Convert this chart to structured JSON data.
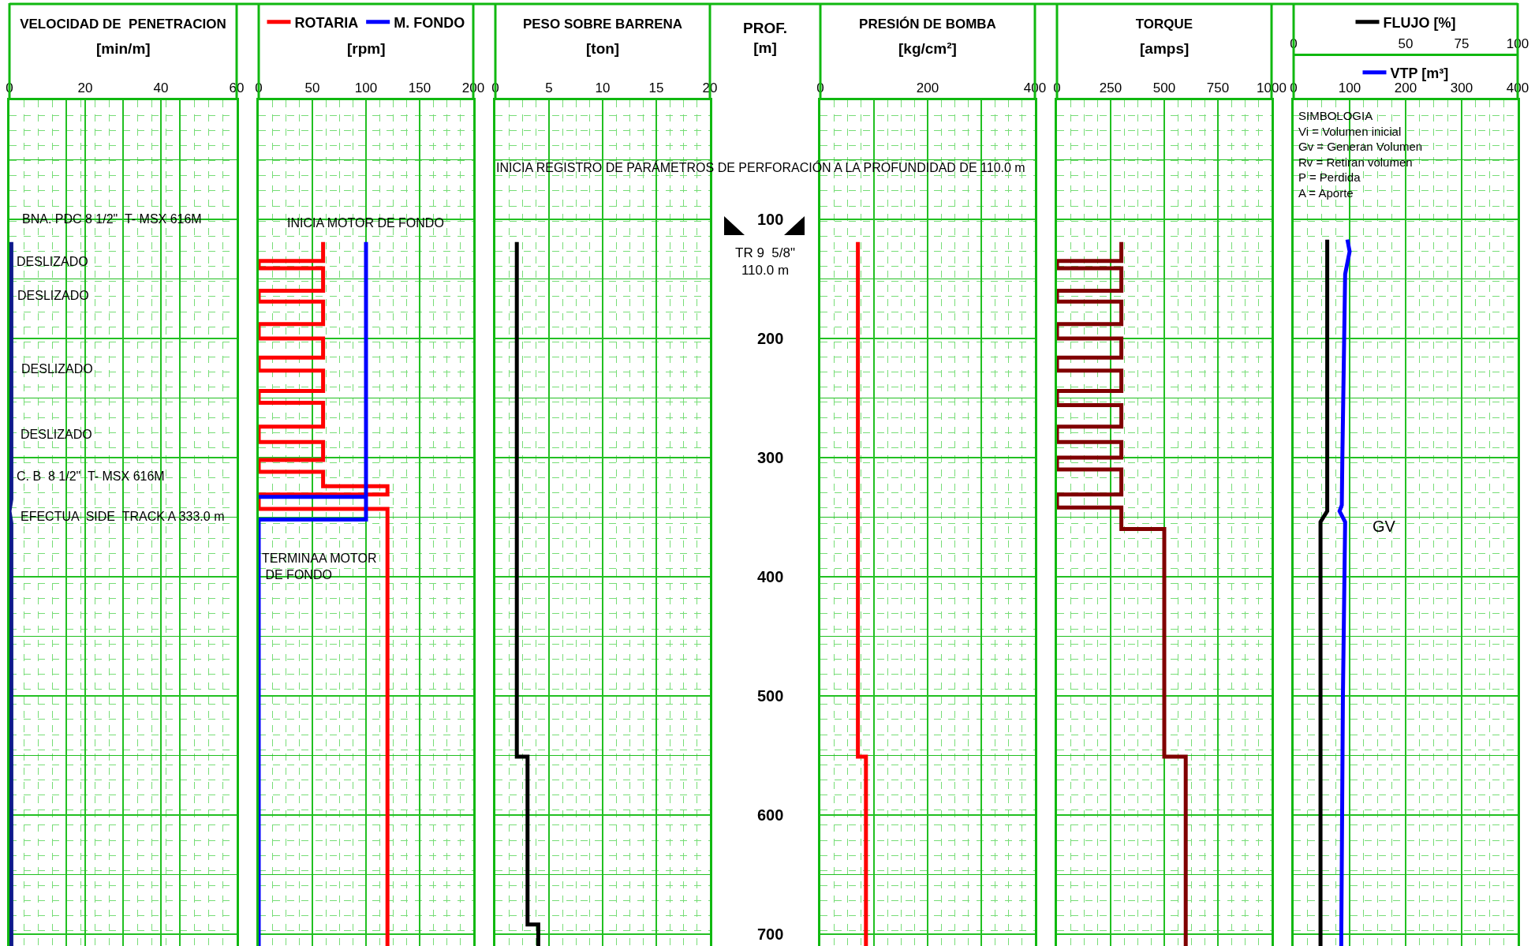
{
  "chart_data": [
    {
      "type": "line",
      "title": "VELOCIDAD DE  PENETRACION",
      "xlabel": "[min/m]",
      "xlim": [
        0,
        60
      ],
      "xticks": [
        0,
        {
          "value": 15,
          "label": null
        },
        20,
        {
          "value": 30,
          "label": null
        },
        40,
        {
          "value": 45,
          "label": null
        },
        60
      ],
      "ylim": [
        710,
        0
      ],
      "yticks": [
        {
          "value": 50,
          "label": null
        },
        100,
        {
          "value": 150,
          "label": null
        },
        200,
        {
          "value": 250,
          "label": null
        },
        300,
        {
          "value": 350,
          "label": null
        },
        400,
        {
          "value": 450,
          "label": null
        },
        500,
        {
          "value": 550,
          "label": null
        },
        600,
        {
          "value": 650,
          "label": null
        },
        700
      ],
      "grid": true,
      "tick_labels": "x",
      "series": [
        {
          "color": "#0d1a8a",
          "x": [
            0.5,
            0.5,
            0,
            0.5,
            0.5
          ],
          "values": [
            119,
            335,
            345,
            355,
            710
          ]
        }
      ],
      "annotations": [
        "BNA. PDC 8 1/2\"  T- MSX 616M",
        "DESLIZADO",
        "DESLIZADO",
        "DESLIZADO",
        "DESLIZADO",
        "C. B  8 1/2\"  T- MSX 616M",
        "EFECTUA  SIDE  TRACK A 333.0 m"
      ]
    },
    {
      "type": "line",
      "xlabel": "[rpm]",
      "xlim": [
        0,
        200
      ],
      "xticks": [
        0,
        50,
        100,
        150,
        200
      ],
      "ylim": [
        710,
        0
      ],
      "yticks": [
        {
          "value": 50,
          "label": null
        },
        100,
        {
          "value": 150,
          "label": null
        },
        200,
        {
          "value": 250,
          "label": null
        },
        300,
        {
          "value": 350,
          "label": null
        },
        400,
        {
          "value": 450,
          "label": null
        },
        500,
        {
          "value": 550,
          "label": null
        },
        600,
        {
          "value": 650,
          "label": null
        },
        700
      ],
      "grid": true,
      "tick_labels": "x",
      "legend": "top",
      "series": [
        {
          "name": "ROTARIA",
          "color": "#ff0000",
          "x": [
            60,
            60,
            0,
            0,
            60,
            60,
            0,
            0,
            60,
            60,
            0,
            0,
            60,
            60,
            0,
            0,
            60,
            60,
            0,
            0,
            60,
            60,
            0,
            0,
            60,
            60,
            0,
            0,
            60,
            60,
            120,
            120,
            0,
            0,
            120,
            120
          ],
          "values": [
            119,
            135,
            135,
            141,
            141,
            160,
            160,
            169,
            169,
            188,
            188,
            200,
            200,
            216,
            216,
            227,
            227,
            244,
            244,
            254,
            254,
            274,
            274,
            287,
            287,
            302,
            302,
            312,
            312,
            324,
            324,
            331,
            331,
            343,
            343,
            710
          ]
        },
        {
          "name": "M. FONDO",
          "color": "#0000ff",
          "x": [
            0,
            100,
            100,
            100,
            0,
            0
          ],
          "values": [
            333,
            333,
            119,
            352,
            352,
            710
          ]
        }
      ],
      "annotations": [
        "INICIA MOTOR DE FONDO",
        "TERMINAA MOTOR\n DE FONDO"
      ]
    },
    {
      "type": "line",
      "title": "PESO SOBRE BARRENA",
      "xlabel": "[ton]",
      "ylabel": "PROF.\n[m]",
      "xlim": [
        0,
        20
      ],
      "xticks": [
        0,
        5,
        10,
        15,
        20
      ],
      "ylim": [
        710,
        0
      ],
      "yticks": [
        {
          "value": 50,
          "label": null
        },
        100,
        {
          "value": 150,
          "label": null
        },
        200,
        {
          "value": 250,
          "label": null
        },
        300,
        {
          "value": 350,
          "label": null
        },
        400,
        {
          "value": 450,
          "label": null
        },
        500,
        {
          "value": 550,
          "label": null
        },
        600,
        {
          "value": 650,
          "label": null
        },
        700
      ],
      "grid": true,
      "series": [
        {
          "color": "#000000",
          "x": [
            2,
            2,
            3,
            3,
            4,
            4
          ],
          "values": [
            119,
            551,
            551,
            692,
            692,
            710
          ]
        }
      ],
      "annotations": [
        "INICIA REGISTRO DE PARÁMETROS DE PERFORACIÓN A LA PROFUNDIDAD DE 110.0 m",
        "TR 9  5/8\"\n110.0 m"
      ]
    },
    {
      "type": "line",
      "title": "PRESIÓN DE BOMBA",
      "xlabel": "[kg/cm²]",
      "xlim": [
        0,
        400
      ],
      "xticks": [
        0,
        {
          "value": 100,
          "label": null
        },
        200,
        {
          "value": 300,
          "label": null
        },
        400
      ],
      "ylim": [
        710,
        0
      ],
      "yticks": [
        {
          "value": 50,
          "label": null
        },
        100,
        {
          "value": 150,
          "label": null
        },
        200,
        {
          "value": 250,
          "label": null
        },
        300,
        {
          "value": 350,
          "label": null
        },
        400,
        {
          "value": 450,
          "label": null
        },
        500,
        {
          "value": 550,
          "label": null
        },
        600,
        {
          "value": 650,
          "label": null
        },
        700
      ],
      "grid": true,
      "tick_labels": "x",
      "series": [
        {
          "color": "#ff0000",
          "x": [
            70,
            70,
            85,
            85
          ],
          "values": [
            119,
            551,
            551,
            710
          ]
        }
      ]
    },
    {
      "type": "line",
      "title": "TORQUE",
      "xlabel": "[amps]",
      "xlim": [
        0,
        1000
      ],
      "xticks": [
        0,
        250,
        500,
        750,
        1000
      ],
      "ylim": [
        710,
        0
      ],
      "yticks": [
        {
          "value": 50,
          "label": null
        },
        100,
        {
          "value": 150,
          "label": null
        },
        200,
        {
          "value": 250,
          "label": null
        },
        300,
        {
          "value": 350,
          "label": null
        },
        400,
        {
          "value": 450,
          "label": null
        },
        500,
        {
          "value": 550,
          "label": null
        },
        600,
        {
          "value": 650,
          "label": null
        },
        700
      ],
      "grid": true,
      "tick_labels": "x",
      "series": [
        {
          "color": "#800000",
          "x": [
            300,
            300,
            0,
            0,
            300,
            300,
            0,
            0,
            300,
            300,
            0,
            0,
            300,
            300,
            0,
            0,
            300,
            300,
            0,
            0,
            300,
            300,
            0,
            0,
            300,
            300,
            0,
            0,
            300,
            300,
            0,
            0,
            300,
            300,
            500,
            500,
            600,
            600
          ],
          "values": [
            119,
            135,
            135,
            141,
            141,
            160,
            160,
            169,
            169,
            188,
            188,
            200,
            200,
            216,
            216,
            227,
            227,
            244,
            244,
            256,
            256,
            274,
            274,
            287,
            287,
            300,
            300,
            310,
            310,
            331,
            331,
            342,
            342,
            360,
            360,
            551,
            551,
            710
          ]
        }
      ]
    },
    {
      "type": "line",
      "xlim": [
        0,
        100
      ],
      "xticks": [
        0,
        50,
        75,
        100
      ],
      "x2lim": [
        0,
        400
      ],
      "x2ticks": [
        0,
        100,
        200,
        300,
        400
      ],
      "ylim": [
        710,
        0
      ],
      "yticks": [
        {
          "value": 50,
          "label": null
        },
        100,
        {
          "value": 150,
          "label": null
        },
        200,
        {
          "value": 250,
          "label": null
        },
        300,
        {
          "value": 350,
          "label": null
        },
        400,
        {
          "value": 450,
          "label": null
        },
        500,
        {
          "value": 550,
          "label": null
        },
        600,
        {
          "value": 650,
          "label": null
        },
        700
      ],
      "grid": true,
      "tick_labels": "x",
      "legend": "top",
      "series": [
        {
          "name": "FLUJO [%]",
          "color": "#000000",
          "x": [
            15,
            15,
            12,
            12
          ],
          "values": [
            117,
            345,
            354,
            710
          ]
        },
        {
          "name": "VTP [m³]",
          "color": "#0000ff",
          "axis": "x2",
          "x": [
            96,
            100,
            92,
            87,
            86,
            82,
            92,
            88,
            85
          ],
          "values": [
            117,
            127,
            146,
            300,
            340,
            345,
            354,
            500,
            710
          ]
        }
      ],
      "annotations": [
        "SIMBOLOGIA\nVi = Volumen inicial\nGv = Generan Volumen\nRv = Retiran volumen\nP = Perdida\nA = Aporte",
        "GV"
      ]
    }
  ]
}
